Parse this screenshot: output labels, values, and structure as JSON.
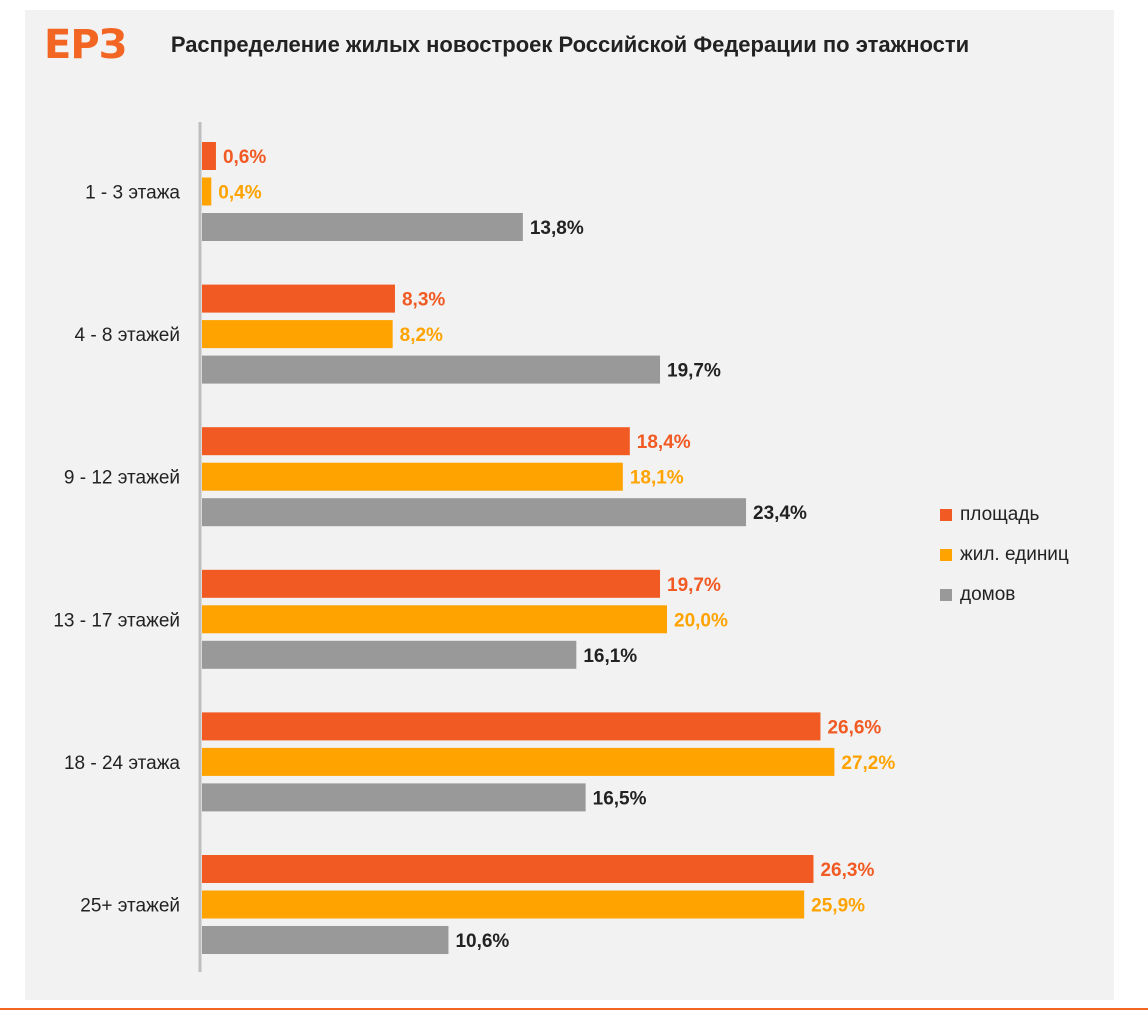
{
  "logo_text": "ЕРЗ",
  "chart_data": {
    "type": "bar",
    "orientation": "horizontal",
    "title": "Распределение  жилых новостроек Российской Федерации  по этажности",
    "categories": [
      "1 - 3 этажа",
      "4 - 8 этажей",
      "9 - 12 этажей",
      "13 - 17 этажей",
      "18 - 24 этажа",
      "25+ этажей"
    ],
    "series": [
      {
        "name": "площадь",
        "color": "#f15a22",
        "label_color": "#f15a22",
        "values": [
          0.6,
          8.3,
          18.4,
          19.7,
          26.6,
          26.3
        ],
        "labels": [
          "0,6%",
          "8,3%",
          "18,4%",
          "19,7%",
          "26,6%",
          "26,3%"
        ]
      },
      {
        "name": "жил. единиц",
        "color": "#ffa300",
        "label_color": "#ffa300",
        "values": [
          0.4,
          8.2,
          18.1,
          20.0,
          27.2,
          25.9
        ],
        "labels": [
          "0,4%",
          "8,2%",
          "18,1%",
          "20,0%",
          "27,2%",
          "25,9%"
        ]
      },
      {
        "name": "домов",
        "color": "#999999",
        "label_color": "#222222",
        "values": [
          13.8,
          19.7,
          23.4,
          16.1,
          16.5,
          10.6
        ],
        "labels": [
          "13,8%",
          "19,7%",
          "23,4%",
          "16,1%",
          "16,5%",
          "10,6%"
        ]
      }
    ],
    "legend_position": "right",
    "grid": false
  }
}
